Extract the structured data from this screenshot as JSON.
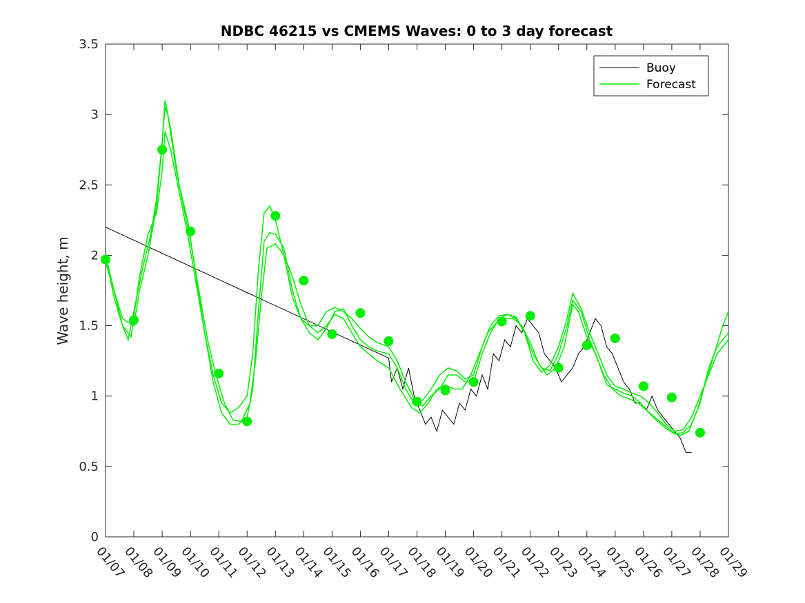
{
  "chart_data": {
    "type": "line",
    "title": "NDBC 46215 vs CMEMS Waves: 0 to 3 day forecast",
    "xlabel": "",
    "ylabel": "Wave height, m",
    "xlim": [
      0,
      22
    ],
    "ylim": [
      0,
      3.5
    ],
    "yticks": [
      0,
      0.5,
      1,
      1.5,
      2,
      2.5,
      3,
      3.5
    ],
    "ytick_labels": [
      "0",
      "0.5",
      "1",
      "1.5",
      "2",
      "2.5",
      "3",
      "3.5"
    ],
    "xtick_labels": [
      "01/07",
      "01/08",
      "01/09",
      "01/10",
      "01/11",
      "01/12",
      "01/13",
      "01/14",
      "01/15",
      "01/16",
      "01/17",
      "01/18",
      "01/19",
      "01/20",
      "01/21",
      "01/22",
      "01/23",
      "01/24",
      "01/25",
      "01/26",
      "01/27",
      "01/28",
      "01/29"
    ],
    "grid": false,
    "legend": {
      "position": "top-right",
      "entries": [
        "Buoy",
        "Forecast"
      ]
    },
    "colors": {
      "buoy": "#000000",
      "forecast": "#00ee00",
      "markers": "#00ee00"
    },
    "series": [
      {
        "name": "Buoy",
        "points": [
          [
            0,
            2.2
          ],
          [
            10,
            1.27
          ],
          [
            10.1,
            1.1
          ],
          [
            10.3,
            1.2
          ],
          [
            10.5,
            1.05
          ],
          [
            10.7,
            1.2
          ],
          [
            10.9,
            1.0
          ],
          [
            11.1,
            0.9
          ],
          [
            11.3,
            0.8
          ],
          [
            11.5,
            0.85
          ],
          [
            11.7,
            0.75
          ],
          [
            11.9,
            0.9
          ],
          [
            12.1,
            0.85
          ],
          [
            12.3,
            0.8
          ],
          [
            12.5,
            0.95
          ],
          [
            12.7,
            0.9
          ],
          [
            12.9,
            1.05
          ],
          [
            13.1,
            1.0
          ],
          [
            13.3,
            1.15
          ],
          [
            13.5,
            1.05
          ],
          [
            13.7,
            1.3
          ],
          [
            13.9,
            1.25
          ],
          [
            14.1,
            1.4
          ],
          [
            14.3,
            1.35
          ],
          [
            14.5,
            1.5
          ],
          [
            14.7,
            1.45
          ],
          [
            14.9,
            1.55
          ],
          [
            15.1,
            1.5
          ],
          [
            15.3,
            1.45
          ],
          [
            15.5,
            1.3
          ],
          [
            15.7,
            1.25
          ],
          [
            15.9,
            1.2
          ],
          [
            16.1,
            1.1
          ],
          [
            16.3,
            1.15
          ],
          [
            16.5,
            1.2
          ],
          [
            16.7,
            1.3
          ],
          [
            16.9,
            1.35
          ],
          [
            17.1,
            1.45
          ],
          [
            17.3,
            1.55
          ],
          [
            17.5,
            1.5
          ],
          [
            17.7,
            1.35
          ],
          [
            17.9,
            1.3
          ],
          [
            18.1,
            1.2
          ],
          [
            18.3,
            1.1
          ],
          [
            18.5,
            1.05
          ],
          [
            18.7,
            0.95
          ],
          [
            18.9,
            0.95
          ],
          [
            19.1,
            0.9
          ],
          [
            19.3,
            1.0
          ],
          [
            19.5,
            0.9
          ],
          [
            19.7,
            0.85
          ],
          [
            19.9,
            0.8
          ],
          [
            20.1,
            0.75
          ],
          [
            20.3,
            0.7
          ],
          [
            20.5,
            0.6
          ],
          [
            20.7,
            0.6
          ]
        ]
      },
      {
        "name": "Forecast",
        "points": [
          [
            0,
            2.0
          ],
          [
            0.3,
            1.75
          ],
          [
            0.6,
            1.5
          ],
          [
            0.8,
            1.4
          ],
          [
            1.0,
            1.6
          ],
          [
            1.3,
            1.9
          ],
          [
            1.6,
            2.15
          ],
          [
            1.8,
            2.4
          ],
          [
            2.0,
            2.8
          ],
          [
            2.1,
            3.05
          ],
          [
            2.2,
            3.0
          ],
          [
            2.5,
            2.6
          ],
          [
            2.8,
            2.3
          ],
          [
            3.0,
            2.1
          ],
          [
            3.3,
            1.75
          ],
          [
            3.6,
            1.4
          ],
          [
            3.9,
            1.15
          ],
          [
            4.2,
            0.95
          ],
          [
            4.5,
            0.83
          ],
          [
            4.8,
            0.82
          ],
          [
            5.1,
            0.95
          ],
          [
            5.3,
            1.25
          ],
          [
            5.5,
            1.7
          ],
          [
            5.7,
            2.05
          ],
          [
            6.0,
            2.08
          ],
          [
            6.3,
            2.0
          ],
          [
            6.6,
            1.85
          ],
          [
            6.9,
            1.65
          ],
          [
            7.2,
            1.5
          ],
          [
            7.5,
            1.45
          ],
          [
            7.8,
            1.5
          ],
          [
            8.1,
            1.58
          ],
          [
            8.4,
            1.55
          ],
          [
            8.7,
            1.45
          ],
          [
            9.0,
            1.35
          ],
          [
            9.3,
            1.3
          ],
          [
            9.6,
            1.25
          ],
          [
            10.0,
            1.2
          ],
          [
            10.4,
            1.05
          ],
          [
            10.8,
            0.92
          ],
          [
            11.1,
            0.88
          ],
          [
            11.4,
            0.95
          ],
          [
            11.7,
            1.05
          ],
          [
            12.0,
            1.08
          ],
          [
            12.3,
            1.05
          ],
          [
            12.6,
            1.05
          ],
          [
            12.9,
            1.15
          ],
          [
            13.2,
            1.3
          ],
          [
            13.5,
            1.45
          ],
          [
            13.8,
            1.52
          ],
          [
            14.1,
            1.55
          ],
          [
            14.4,
            1.55
          ],
          [
            14.7,
            1.5
          ],
          [
            15.0,
            1.38
          ],
          [
            15.3,
            1.23
          ],
          [
            15.6,
            1.15
          ],
          [
            15.9,
            1.2
          ],
          [
            16.2,
            1.35
          ],
          [
            16.5,
            1.65
          ],
          [
            16.7,
            1.6
          ],
          [
            17.0,
            1.42
          ],
          [
            17.3,
            1.3
          ],
          [
            17.6,
            1.15
          ],
          [
            17.9,
            1.05
          ],
          [
            18.2,
            1.0
          ],
          [
            18.5,
            0.98
          ],
          [
            18.8,
            0.95
          ],
          [
            19.1,
            0.9
          ],
          [
            19.4,
            0.85
          ],
          [
            19.7,
            0.8
          ],
          [
            20.0,
            0.75
          ],
          [
            20.3,
            0.72
          ],
          [
            20.6,
            0.75
          ],
          [
            20.9,
            0.9
          ],
          [
            21.2,
            1.1
          ],
          [
            21.5,
            1.3
          ],
          [
            21.8,
            1.5
          ],
          [
            22.0,
            1.6
          ]
        ]
      },
      {
        "name": "",
        "points": [
          [
            0,
            1.95
          ],
          [
            0.3,
            1.75
          ],
          [
            0.6,
            1.55
          ],
          [
            1.0,
            1.5
          ],
          [
            1.2,
            1.75
          ],
          [
            1.5,
            2.0
          ],
          [
            1.8,
            2.35
          ],
          [
            2.0,
            2.8
          ],
          [
            2.1,
            3.1
          ],
          [
            2.3,
            2.9
          ],
          [
            2.6,
            2.5
          ],
          [
            2.9,
            2.25
          ],
          [
            3.2,
            1.85
          ],
          [
            3.5,
            1.45
          ],
          [
            3.8,
            1.1
          ],
          [
            4.1,
            0.88
          ],
          [
            4.4,
            0.8
          ],
          [
            4.7,
            0.8
          ],
          [
            5.0,
            0.85
          ],
          [
            5.2,
            1.05
          ],
          [
            5.4,
            1.6
          ],
          [
            5.6,
            2.1
          ],
          [
            5.8,
            2.16
          ],
          [
            6.0,
            2.15
          ],
          [
            6.3,
            2.05
          ],
          [
            6.6,
            1.75
          ],
          [
            6.9,
            1.55
          ],
          [
            7.2,
            1.45
          ],
          [
            7.5,
            1.4
          ],
          [
            7.8,
            1.48
          ],
          [
            8.1,
            1.6
          ],
          [
            8.4,
            1.62
          ],
          [
            8.7,
            1.5
          ],
          [
            9.0,
            1.4
          ],
          [
            9.3,
            1.35
          ],
          [
            9.6,
            1.32
          ],
          [
            10.0,
            1.3
          ],
          [
            10.3,
            1.2
          ],
          [
            10.6,
            1.05
          ],
          [
            10.9,
            0.95
          ],
          [
            11.2,
            0.93
          ],
          [
            11.5,
            1.0
          ],
          [
            11.8,
            1.05
          ],
          [
            12.1,
            1.15
          ],
          [
            12.4,
            1.15
          ],
          [
            12.7,
            1.1
          ],
          [
            13.0,
            1.1
          ],
          [
            13.3,
            1.3
          ],
          [
            13.6,
            1.45
          ],
          [
            13.9,
            1.55
          ],
          [
            14.2,
            1.58
          ],
          [
            14.5,
            1.55
          ],
          [
            14.8,
            1.45
          ],
          [
            15.1,
            1.3
          ],
          [
            15.4,
            1.2
          ],
          [
            15.7,
            1.18
          ],
          [
            16.0,
            1.3
          ],
          [
            16.3,
            1.5
          ],
          [
            16.5,
            1.68
          ],
          [
            16.8,
            1.6
          ],
          [
            17.1,
            1.4
          ],
          [
            17.4,
            1.25
          ],
          [
            17.7,
            1.08
          ],
          [
            18.0,
            1.05
          ],
          [
            18.3,
            1.02
          ],
          [
            18.6,
            1.0
          ],
          [
            18.9,
            0.95
          ],
          [
            19.2,
            0.88
          ],
          [
            19.5,
            0.82
          ],
          [
            19.8,
            0.77
          ],
          [
            20.1,
            0.73
          ],
          [
            20.4,
            0.74
          ],
          [
            20.7,
            0.8
          ],
          [
            21.0,
            0.95
          ],
          [
            21.3,
            1.2
          ],
          [
            21.6,
            1.35
          ],
          [
            22.0,
            1.45
          ]
        ]
      },
      {
        "name": "",
        "points": [
          [
            0,
            2.0
          ],
          [
            0.3,
            1.7
          ],
          [
            0.6,
            1.5
          ],
          [
            0.9,
            1.42
          ],
          [
            1.2,
            1.85
          ],
          [
            1.5,
            2.15
          ],
          [
            1.8,
            2.3
          ],
          [
            2.0,
            2.6
          ],
          [
            2.1,
            2.88
          ],
          [
            2.3,
            2.75
          ],
          [
            2.6,
            2.45
          ],
          [
            2.9,
            2.15
          ],
          [
            3.2,
            1.8
          ],
          [
            3.5,
            1.45
          ],
          [
            3.8,
            1.15
          ],
          [
            4.1,
            0.95
          ],
          [
            4.4,
            0.88
          ],
          [
            4.7,
            0.92
          ],
          [
            5.0,
            1.0
          ],
          [
            5.2,
            1.3
          ],
          [
            5.4,
            1.9
          ],
          [
            5.6,
            2.3
          ],
          [
            5.8,
            2.35
          ],
          [
            6.0,
            2.25
          ],
          [
            6.3,
            2.0
          ],
          [
            6.6,
            1.7
          ],
          [
            6.9,
            1.55
          ],
          [
            7.2,
            1.5
          ],
          [
            7.5,
            1.5
          ],
          [
            7.8,
            1.6
          ],
          [
            8.1,
            1.63
          ],
          [
            8.4,
            1.6
          ],
          [
            8.7,
            1.55
          ],
          [
            9.0,
            1.48
          ],
          [
            9.3,
            1.42
          ],
          [
            9.6,
            1.38
          ],
          [
            10.0,
            1.35
          ],
          [
            10.3,
            1.25
          ],
          [
            10.6,
            1.1
          ],
          [
            10.9,
            0.98
          ],
          [
            11.2,
            0.97
          ],
          [
            11.5,
            1.05
          ],
          [
            11.8,
            1.15
          ],
          [
            12.1,
            1.2
          ],
          [
            12.4,
            1.18
          ],
          [
            12.7,
            1.12
          ],
          [
            13.0,
            1.15
          ],
          [
            13.3,
            1.35
          ],
          [
            13.6,
            1.5
          ],
          [
            13.9,
            1.57
          ],
          [
            14.2,
            1.58
          ],
          [
            14.5,
            1.56
          ],
          [
            14.8,
            1.45
          ],
          [
            15.1,
            1.25
          ],
          [
            15.4,
            1.17
          ],
          [
            15.7,
            1.22
          ],
          [
            16.0,
            1.35
          ],
          [
            16.3,
            1.55
          ],
          [
            16.5,
            1.73
          ],
          [
            16.8,
            1.62
          ],
          [
            17.1,
            1.45
          ],
          [
            17.4,
            1.3
          ],
          [
            17.7,
            1.15
          ],
          [
            18.0,
            1.07
          ],
          [
            18.3,
            1.05
          ],
          [
            18.6,
            1.02
          ],
          [
            18.9,
            1.0
          ],
          [
            19.2,
            0.95
          ],
          [
            19.5,
            0.88
          ],
          [
            19.8,
            0.8
          ],
          [
            20.1,
            0.75
          ],
          [
            20.4,
            0.76
          ],
          [
            20.7,
            0.85
          ],
          [
            21.0,
            1.0
          ],
          [
            21.3,
            1.15
          ],
          [
            21.6,
            1.3
          ],
          [
            22.0,
            1.4
          ]
        ]
      }
    ],
    "markers": [
      [
        0,
        1.97
      ],
      [
        1,
        1.54
      ],
      [
        2,
        2.75
      ],
      [
        3,
        2.17
      ],
      [
        4,
        1.16
      ],
      [
        5,
        0.82
      ],
      [
        6,
        2.28
      ],
      [
        7,
        1.82
      ],
      [
        8,
        1.44
      ],
      [
        9,
        1.59
      ],
      [
        10,
        1.39
      ],
      [
        11,
        0.96
      ],
      [
        12,
        1.04
      ],
      [
        13,
        1.1
      ],
      [
        14,
        1.53
      ],
      [
        15,
        1.57
      ],
      [
        16,
        1.2
      ],
      [
        17,
        1.36
      ],
      [
        18,
        1.41
      ],
      [
        19,
        1.07
      ],
      [
        20,
        0.99
      ],
      [
        21,
        0.74
      ]
    ]
  }
}
